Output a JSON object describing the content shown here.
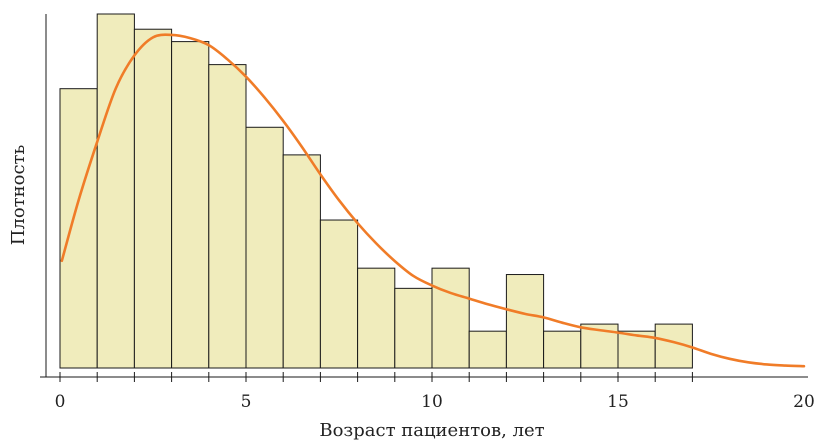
{
  "chart_data": {
    "type": "bar",
    "subtype": "histogram-with-density",
    "title": "",
    "xlabel": "Возраст пациентов, лет",
    "ylabel": "Плотность",
    "xlim": [
      0,
      20
    ],
    "ylim": [
      0,
      1
    ],
    "x_ticks": [
      0,
      5,
      10,
      15,
      20
    ],
    "bin_width": 1,
    "bins": [
      {
        "start": 0,
        "end": 1,
        "height": 0.789
      },
      {
        "start": 1,
        "end": 2,
        "height": 1.0
      },
      {
        "start": 2,
        "end": 3,
        "height": 0.957
      },
      {
        "start": 3,
        "end": 4,
        "height": 0.922
      },
      {
        "start": 4,
        "end": 5,
        "height": 0.857
      },
      {
        "start": 5,
        "end": 6,
        "height": 0.68
      },
      {
        "start": 6,
        "end": 7,
        "height": 0.602
      },
      {
        "start": 7,
        "end": 8,
        "height": 0.418
      },
      {
        "start": 8,
        "end": 9,
        "height": 0.282
      },
      {
        "start": 9,
        "end": 10,
        "height": 0.225
      },
      {
        "start": 10,
        "end": 11,
        "height": 0.282
      },
      {
        "start": 11,
        "end": 12,
        "height": 0.104
      },
      {
        "start": 12,
        "end": 13,
        "height": 0.264
      },
      {
        "start": 13,
        "end": 14,
        "height": 0.104
      },
      {
        "start": 14,
        "end": 15,
        "height": 0.124
      },
      {
        "start": 15,
        "end": 16,
        "height": 0.104
      },
      {
        "start": 16,
        "end": 17,
        "height": 0.124
      }
    ],
    "density_curve": {
      "x": [
        0.05,
        0.5,
        1,
        1.5,
        2,
        2.5,
        3,
        3.5,
        4,
        4.5,
        5,
        5.5,
        6,
        6.5,
        7,
        7.5,
        8,
        8.5,
        9,
        9.5,
        10,
        10.5,
        11,
        11.5,
        12,
        12.5,
        13,
        13.5,
        14,
        14.5,
        15,
        15.5,
        16,
        16.5,
        17,
        17.5,
        18,
        18.5,
        19,
        19.5,
        20
      ],
      "y": [
        0.303,
        0.474,
        0.639,
        0.79,
        0.883,
        0.934,
        0.941,
        0.932,
        0.912,
        0.872,
        0.823,
        0.764,
        0.698,
        0.625,
        0.547,
        0.474,
        0.409,
        0.352,
        0.302,
        0.26,
        0.233,
        0.212,
        0.196,
        0.18,
        0.166,
        0.153,
        0.143,
        0.128,
        0.115,
        0.107,
        0.1,
        0.092,
        0.085,
        0.073,
        0.058,
        0.04,
        0.026,
        0.016,
        0.01,
        0.007,
        0.005
      ],
      "color": "#f07c28"
    },
    "bar_color": "#f0ecbc",
    "bar_edge_color": "#1a1a1a",
    "grid": false,
    "legend": false
  }
}
